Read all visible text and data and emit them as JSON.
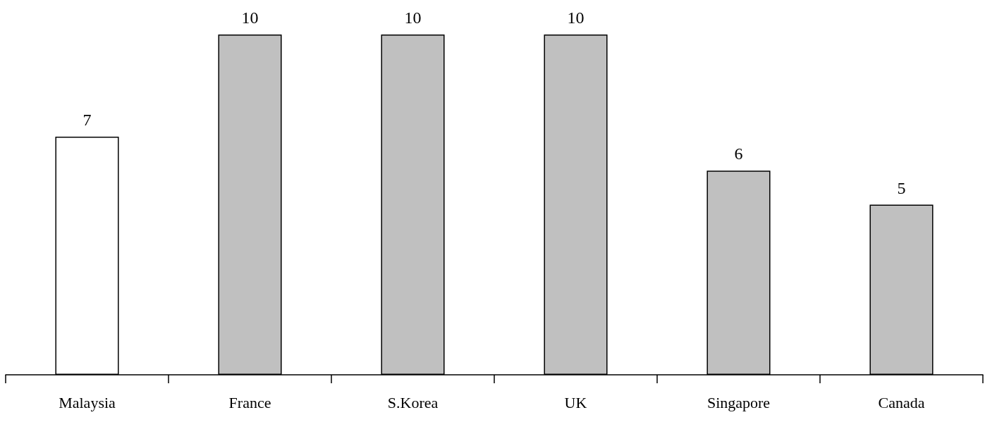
{
  "chart_data": {
    "type": "bar",
    "categories": [
      "Malaysia",
      "France",
      "S.Korea",
      "UK",
      "Singapore",
      "Canada"
    ],
    "values": [
      7,
      10,
      10,
      10,
      6,
      5
    ],
    "colors": [
      "#ffffff",
      "#c0c0c0",
      "#c0c0c0",
      "#c0c0c0",
      "#c0c0c0",
      "#c0c0c0"
    ],
    "data_labels": true
  }
}
